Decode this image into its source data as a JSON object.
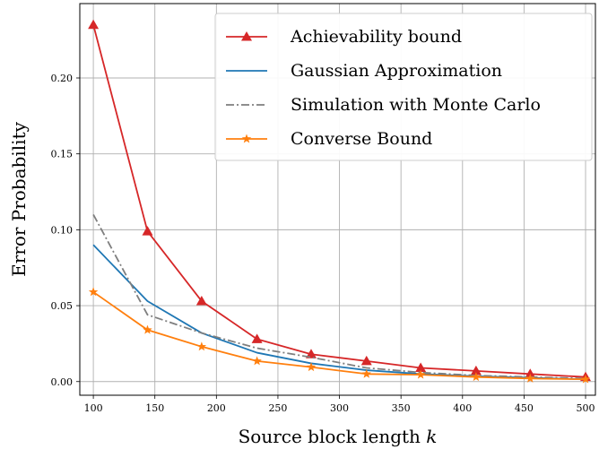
{
  "chart_data": {
    "type": "line",
    "title": "",
    "xlabel": "Source block length k",
    "ylabel": "Error Probability",
    "xlim": [
      89,
      508
    ],
    "ylim": [
      -0.009,
      0.249
    ],
    "xticks": [
      100,
      150,
      200,
      250,
      300,
      350,
      400,
      450,
      500
    ],
    "yticks": [
      0.0,
      0.05,
      0.1,
      0.15,
      0.2
    ],
    "ytick_labels": [
      "0.00",
      "0.05",
      "0.10",
      "0.15",
      "0.20"
    ],
    "grid": true,
    "legend_position": "top-right",
    "x": [
      100,
      144,
      188,
      233,
      277,
      322,
      366,
      411,
      455,
      500
    ],
    "series": [
      {
        "name": "Achievability bound",
        "color": "#d62728",
        "marker": "triangle",
        "style": "solid",
        "values": [
          0.235,
          0.099,
          0.053,
          0.028,
          0.018,
          0.0135,
          0.009,
          0.007,
          0.005,
          0.003
        ]
      },
      {
        "name": "Gaussian Approximation",
        "color": "#1f77b4",
        "marker": "none",
        "style": "solid",
        "values": [
          0.09,
          0.053,
          0.032,
          0.019,
          0.012,
          0.0075,
          0.005,
          0.0035,
          0.0025,
          0.0015
        ]
      },
      {
        "name": "Simulation with Monte Carlo",
        "color": "#7f7f7f",
        "marker": "none",
        "style": "dashdot",
        "values": [
          0.11,
          0.044,
          0.032,
          0.022,
          0.016,
          0.009,
          0.006,
          0.004,
          0.003,
          0.002
        ]
      },
      {
        "name": "Converse Bound",
        "color": "#ff7f0e",
        "marker": "star",
        "style": "solid",
        "values": [
          0.059,
          0.034,
          0.023,
          0.0135,
          0.0095,
          0.005,
          0.0045,
          0.003,
          0.002,
          0.0015
        ]
      }
    ]
  }
}
